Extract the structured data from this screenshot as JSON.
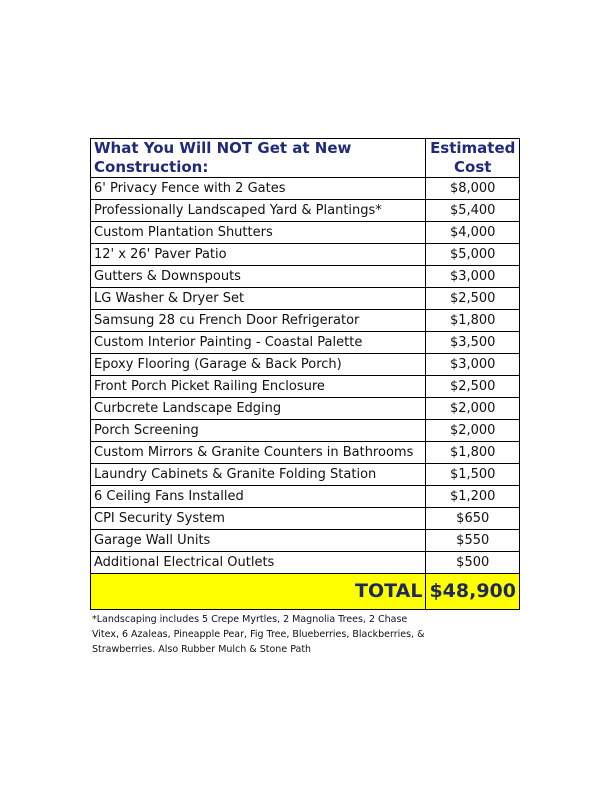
{
  "header": {
    "item": "What You Will NOT Get at New Construction:",
    "cost": "Estimated Cost"
  },
  "rows": [
    {
      "item": "6' Privacy Fence with 2 Gates",
      "cost": "$8,000"
    },
    {
      "item": "Professionally Landscaped Yard & Plantings*",
      "cost": "$5,400"
    },
    {
      "item": "Custom Plantation Shutters",
      "cost": "$4,000"
    },
    {
      "item": "12' x 26' Paver Patio",
      "cost": "$5,000"
    },
    {
      "item": "Gutters & Downspouts",
      "cost": "$3,000"
    },
    {
      "item": "LG Washer & Dryer Set",
      "cost": "$2,500"
    },
    {
      "item": "Samsung 28 cu French Door Refrigerator",
      "cost": "$1,800"
    },
    {
      "item": "Custom Interior Painting - Coastal Palette",
      "cost": "$3,500"
    },
    {
      "item": "Epoxy Flooring (Garage & Back Porch)",
      "cost": "$3,000"
    },
    {
      "item": "Front Porch Picket Railing Enclosure",
      "cost": "$2,500"
    },
    {
      "item": "Curbcrete Landscape Edging",
      "cost": "$2,000"
    },
    {
      "item": "Porch Screening",
      "cost": "$2,000"
    },
    {
      "item": "Custom Mirrors & Granite Counters in Bathrooms",
      "cost": "$1,800"
    },
    {
      "item": "Laundry Cabinets & Granite Folding Station",
      "cost": "$1,500"
    },
    {
      "item": "6 Ceiling Fans Installed",
      "cost": "$1,200"
    },
    {
      "item": "CPI Security System",
      "cost": "$650"
    },
    {
      "item": "Garage Wall Units",
      "cost": "$550"
    },
    {
      "item": "Additional Electrical Outlets",
      "cost": "$500"
    }
  ],
  "total": {
    "label": "TOTAL",
    "value": "$48,900"
  },
  "footnote": "*Landscaping includes 5 Crepe Myrtles, 2 Magnolia Trees, 2 Chase Vitex, 6 Azaleas, Pineapple Pear, Fig Tree, Blueberries, Blackberries, & Strawberries. Also Rubber Mulch & Stone Path",
  "colors": {
    "header_text": "#1f2a7a",
    "total_bg": "#ffff00"
  }
}
